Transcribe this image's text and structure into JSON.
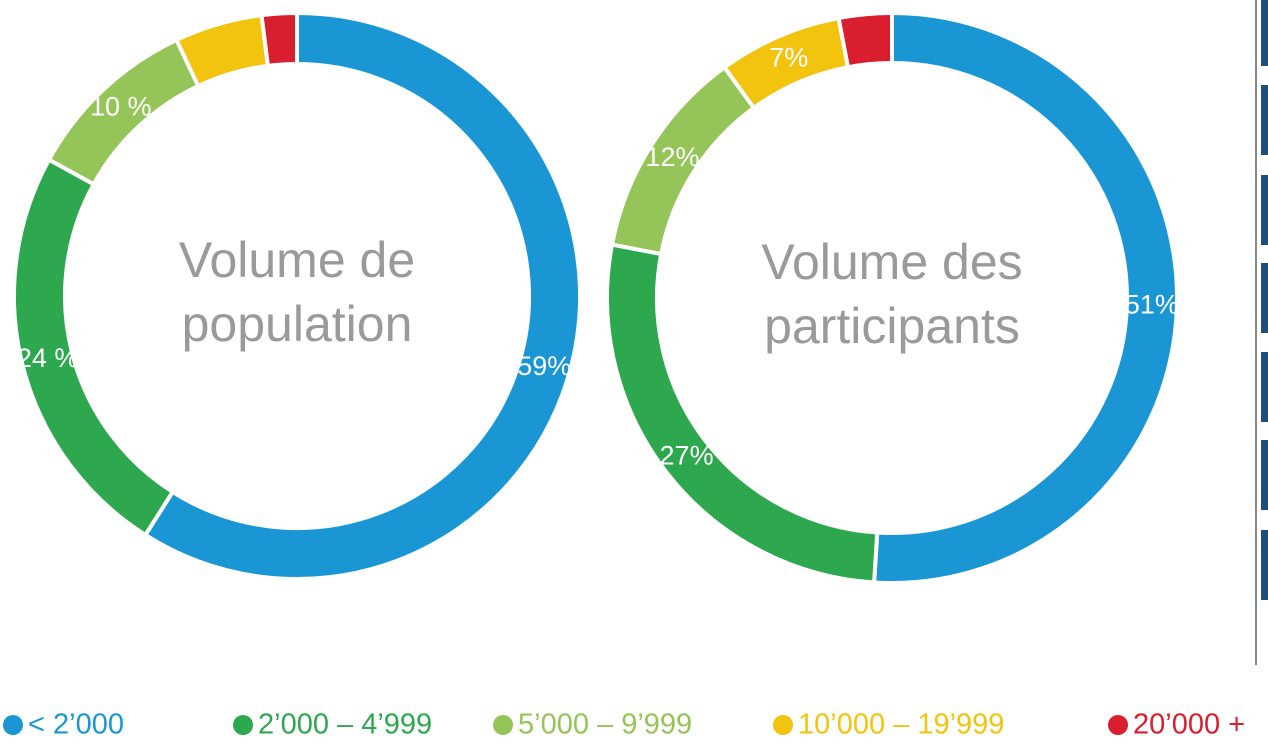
{
  "legend": {
    "categories": [
      "< 2’000",
      "2’000 – 4’999",
      "5’000 – 9’999",
      "10’000 – 19’999",
      "20’000 +"
    ],
    "colors": [
      "#1a96d5",
      "#2ea84f",
      "#95c459",
      "#f2c40f",
      "#d81e2f"
    ]
  },
  "chart_data": [
    {
      "type": "pie",
      "title": [
        "Volume de",
        "population"
      ],
      "values": [
        59,
        24,
        10,
        5,
        2
      ],
      "value_labels": [
        "59%",
        "24 %",
        "10 %",
        null,
        null
      ]
    },
    {
      "type": "pie",
      "title": [
        "Volume des",
        "participants"
      ],
      "values": [
        51,
        27,
        12,
        7,
        3
      ],
      "value_labels": [
        "51%",
        "27%",
        "12%",
        "7%",
        null
      ]
    }
  ]
}
